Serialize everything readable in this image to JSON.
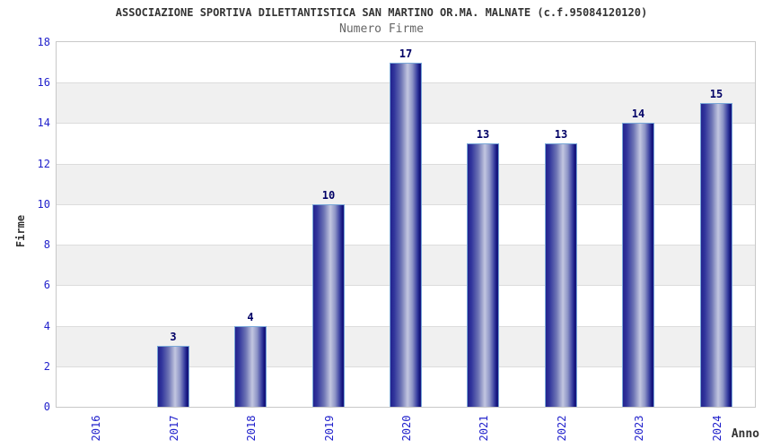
{
  "chart_data": {
    "type": "bar",
    "title": "ASSOCIAZIONE SPORTIVA DILETTANTISTICA SAN MARTINO OR.MA. MALNATE (c.f.95084120120)",
    "subtitle": "Numero Firme",
    "xlabel": "Anno",
    "ylabel": "Firme",
    "categories": [
      "2016",
      "2017",
      "2018",
      "2019",
      "2020",
      "2021",
      "2022",
      "2023",
      "2024"
    ],
    "values": [
      0,
      3,
      4,
      10,
      17,
      13,
      13,
      14,
      15
    ],
    "ylim": [
      0,
      18
    ],
    "ytick_step": 2,
    "grid": "alternating-horizontal-bands",
    "legend": "none",
    "show_value_labels": true,
    "value_labels": [
      "",
      "3",
      "4",
      "10",
      "17",
      "13",
      "13",
      "14",
      "15"
    ],
    "colors": {
      "background": "#ffffff",
      "title": "#333333",
      "subtitle": "#666666",
      "tick_label": "#2222cc",
      "value_label": "#000066",
      "axis_title": "#333333",
      "plot_border": "#c8c8c8",
      "band_white": "#ffffff",
      "band_gray": "#f0f0f0",
      "gridline": "#dcdcdc",
      "bar_border": "#78a7d7",
      "bar_dark": "#23238e",
      "bar_light": "#c2c6e0"
    }
  }
}
